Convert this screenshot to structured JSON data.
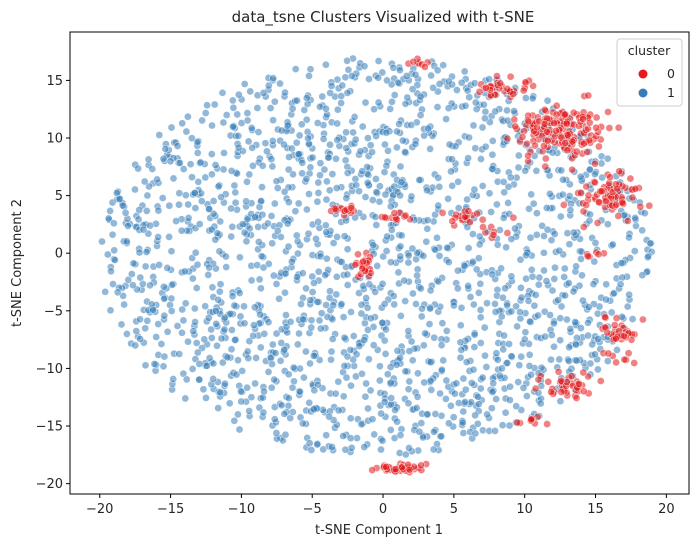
{
  "chart_data": {
    "type": "scatter",
    "title": "data_tsne Clusters Visualized with t-SNE",
    "xlabel": "t-SNE Component 1",
    "ylabel": "t-SNE Component 2",
    "xlim": [
      -22.1,
      21.6
    ],
    "ylim": [
      -20.9,
      19.2
    ],
    "xticks": [
      -20,
      -15,
      -10,
      -5,
      0,
      5,
      10,
      15,
      20
    ],
    "yticks": [
      -20,
      -15,
      -10,
      -5,
      0,
      5,
      10,
      15
    ],
    "tick_labels_x": [
      "−20",
      "−15",
      "−10",
      "−5",
      "0",
      "5",
      "10",
      "15",
      "20"
    ],
    "tick_labels_y": [
      "−20",
      "−15",
      "−10",
      "−5",
      "0",
      "5",
      "10",
      "15"
    ],
    "grid": false,
    "legend": {
      "title": "cluster",
      "placement": "top-right"
    },
    "series": [
      {
        "name": "0",
        "color": "#e41a1c",
        "clusters": [
          {
            "cx": 12.5,
            "cy": 10.5,
            "rx": 3.2,
            "ry": 2.4,
            "n": 160
          },
          {
            "cx": 16.0,
            "cy": 5.0,
            "rx": 2.0,
            "ry": 1.8,
            "n": 70
          },
          {
            "cx": 8.5,
            "cy": 14.2,
            "rx": 2.2,
            "ry": 1.0,
            "n": 35
          },
          {
            "cx": 16.5,
            "cy": -7.0,
            "rx": 1.3,
            "ry": 2.0,
            "n": 40
          },
          {
            "cx": 13.0,
            "cy": -11.5,
            "rx": 2.2,
            "ry": 1.4,
            "n": 40
          },
          {
            "cx": 1.0,
            "cy": -18.6,
            "rx": 1.6,
            "ry": 0.35,
            "n": 45
          },
          {
            "cx": -1.2,
            "cy": -1.0,
            "rx": 0.7,
            "ry": 0.9,
            "n": 25
          },
          {
            "cx": -2.8,
            "cy": 3.8,
            "rx": 0.9,
            "ry": 0.4,
            "n": 15
          },
          {
            "cx": 0.8,
            "cy": 3.1,
            "rx": 0.8,
            "ry": 0.4,
            "n": 12
          },
          {
            "cx": 5.5,
            "cy": 3.0,
            "rx": 1.5,
            "ry": 0.6,
            "n": 20
          },
          {
            "cx": 2.5,
            "cy": 16.5,
            "rx": 0.8,
            "ry": 0.5,
            "n": 8
          },
          {
            "cx": 8.0,
            "cy": 1.5,
            "rx": 1.0,
            "ry": 1.0,
            "n": 8
          },
          {
            "cx": 15.0,
            "cy": 0.0,
            "rx": 0.8,
            "ry": 0.5,
            "n": 6
          },
          {
            "cx": 10.5,
            "cy": -14.8,
            "rx": 1.2,
            "ry": 0.5,
            "n": 10
          }
        ]
      },
      {
        "name": "1",
        "color": "#377eb8",
        "region": {
          "cx": -0.5,
          "cy": -0.3,
          "rx": 19.5,
          "ry": 17.3
        },
        "n": 1900
      }
    ]
  }
}
